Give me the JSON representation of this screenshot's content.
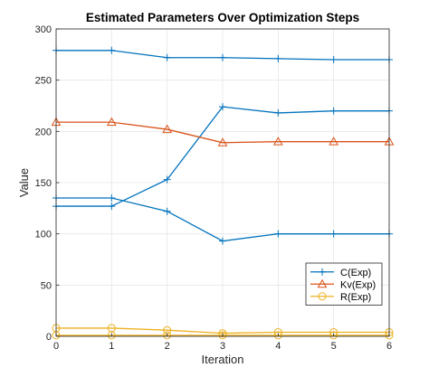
{
  "chart_data": {
    "type": "line",
    "title": "Estimated Parameters Over Optimization Steps",
    "xlabel": "Iteration",
    "ylabel": "Value",
    "xlim": [
      0,
      6
    ],
    "ylim": [
      0,
      300
    ],
    "x": [
      0,
      1,
      2,
      3,
      4,
      5,
      6
    ],
    "x_ticks": [
      "0",
      "1",
      "2",
      "3",
      "4",
      "5",
      "6"
    ],
    "y_ticks": [
      "0",
      "50",
      "100",
      "150",
      "200",
      "250",
      "300"
    ],
    "grid": true,
    "legend_position": "lower-right",
    "series": [
      {
        "name": "C(Exp)",
        "color": "#0072BD",
        "marker": "plus",
        "values": [
          279,
          279,
          272,
          272,
          271,
          270,
          270
        ]
      },
      {
        "name": "",
        "color": "#0072BD",
        "marker": "plus",
        "values": [
          127,
          127,
          153,
          224,
          218,
          220,
          220
        ]
      },
      {
        "name": "",
        "color": "#0072BD",
        "marker": "plus",
        "values": [
          135,
          135,
          122,
          93,
          100,
          100,
          100
        ]
      },
      {
        "name": "Kv(Exp)",
        "color": "#D95319",
        "marker": "triangle",
        "values": [
          209,
          209,
          202,
          189,
          190,
          190,
          190
        ]
      },
      {
        "name": "R(Exp)",
        "color": "#EDB120",
        "marker": "circle",
        "values": [
          8,
          8,
          6,
          3,
          4,
          4,
          4
        ]
      },
      {
        "name": "",
        "color": "#EDB120",
        "marker": "circle",
        "values": [
          1,
          1,
          1,
          1,
          1,
          1,
          1
        ]
      }
    ]
  }
}
